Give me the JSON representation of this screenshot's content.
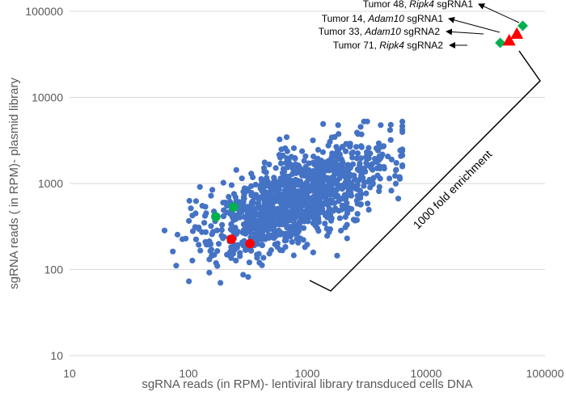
{
  "chart_data": {
    "type": "scatter",
    "xlabel": "sgRNA reads (in RPM)- lentiviral library transduced cells DNA",
    "ylabel": "sgRNA reads ( in RPM)- plasmid library",
    "x_scale": "log",
    "y_scale": "log",
    "xlim": [
      10,
      100000
    ],
    "ylim": [
      10,
      100000
    ],
    "x_ticks": [
      "10",
      "100",
      "1000",
      "10000",
      "100000"
    ],
    "y_ticks": [
      "10",
      "100",
      "1000",
      "10000",
      "100000"
    ],
    "grid": "horizontal",
    "series": [
      {
        "marker": "circle",
        "color": "#4472C4",
        "points": []
      },
      {
        "marker": "circle",
        "color": "#00B050",
        "points": [
          [
            170,
            410
          ],
          [
            240,
            530
          ]
        ]
      },
      {
        "marker": "circle",
        "color": "#FF0000",
        "points": [
          [
            230,
            225
          ],
          [
            330,
            200
          ]
        ]
      },
      {
        "marker": "diamond",
        "color": "#00B050",
        "points": [
          [
            65000,
            68000
          ],
          [
            42000,
            43000
          ]
        ]
      },
      {
        "marker": "triangle",
        "color": "#FF0000",
        "points": [
          [
            58000,
            55000
          ],
          [
            50000,
            46000
          ]
        ]
      }
    ],
    "annotations": [
      {
        "parts": [
          "Tumor 48, ",
          "Ripk4",
          " sgRNA1"
        ]
      },
      {
        "parts": [
          "Tumor 14, ",
          "Adam10",
          " sgRNA1"
        ]
      },
      {
        "parts": [
          "Tumor 33, ",
          "Adam10",
          " sgRNA2"
        ]
      },
      {
        "parts": [
          "Tumor 71, ",
          "Ripk4",
          " sgRNA2"
        ]
      }
    ],
    "bracket_label": "1000 fold enrichment"
  }
}
